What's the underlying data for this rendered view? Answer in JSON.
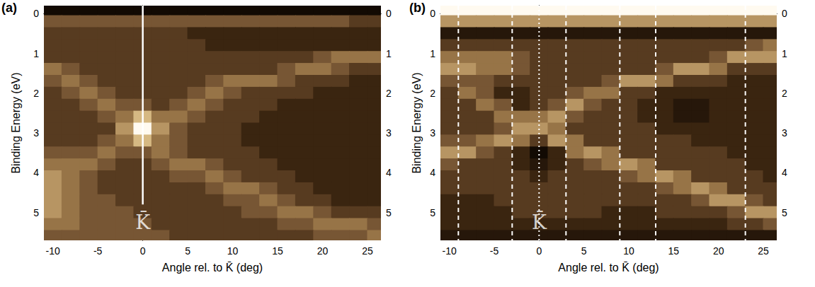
{
  "chart_data": [
    {
      "type": "heatmap",
      "panel": "(a)",
      "x_label": "Angle rel. to K̄ (deg)",
      "y_label": "Binding Energy (eV)",
      "xlim": [
        -11,
        26.5
      ],
      "xticks": [
        -10,
        -5,
        0,
        5,
        10,
        15,
        20,
        25
      ],
      "ylim": [
        -0.2,
        5.7
      ],
      "yticks": [
        0,
        1,
        2,
        3,
        4,
        5
      ],
      "grid": false,
      "zlim": [
        0,
        9
      ],
      "cell_x": [
        -10,
        -8,
        -6,
        -4,
        -2,
        0,
        2,
        4,
        6,
        8,
        10,
        12,
        14,
        16,
        18,
        20,
        22,
        24,
        26
      ],
      "cell_y": [
        -0.1,
        0.2,
        0.5,
        0.8,
        1.1,
        1.4,
        1.7,
        2.0,
        2.3,
        2.6,
        2.9,
        3.2,
        3.5,
        3.8,
        4.1,
        4.4,
        4.7,
        5.0,
        5.3,
        5.6
      ],
      "cells": [
        [
          0,
          0,
          0,
          0,
          0,
          0,
          0,
          0,
          0,
          0,
          0,
          0,
          0,
          0,
          0,
          0,
          0,
          0,
          0
        ],
        [
          4,
          4,
          4,
          4,
          4,
          4,
          4,
          4,
          4,
          4,
          4,
          4,
          4,
          4,
          4,
          4,
          4,
          3,
          3
        ],
        [
          3,
          3,
          3,
          3,
          3,
          3,
          3,
          3,
          2,
          2,
          2,
          2,
          2,
          2,
          2,
          2,
          2,
          2,
          2
        ],
        [
          3,
          3,
          3,
          3,
          3,
          3,
          3,
          3,
          3,
          2,
          2,
          2,
          2,
          2,
          2,
          2,
          2,
          2,
          2
        ],
        [
          3,
          3,
          3,
          3,
          3,
          3,
          3,
          3,
          3,
          3,
          3,
          3,
          3,
          3,
          3,
          4,
          5,
          5,
          5
        ],
        [
          5,
          4,
          3,
          3,
          3,
          3,
          3,
          3,
          3,
          3,
          3,
          3,
          3,
          4,
          5,
          5,
          4,
          3,
          3
        ],
        [
          4,
          5,
          4,
          3,
          3,
          3,
          3,
          3,
          3,
          4,
          5,
          5,
          5,
          4,
          3,
          3,
          3,
          2,
          2
        ],
        [
          3,
          4,
          5,
          4,
          3,
          3,
          3,
          3,
          4,
          5,
          4,
          3,
          3,
          3,
          3,
          2,
          2,
          2,
          2
        ],
        [
          3,
          3,
          4,
          5,
          4,
          4,
          3,
          4,
          5,
          4,
          3,
          3,
          3,
          2,
          2,
          2,
          2,
          2,
          2
        ],
        [
          3,
          3,
          3,
          4,
          5,
          7,
          5,
          5,
          4,
          3,
          3,
          3,
          2,
          2,
          2,
          2,
          2,
          2,
          2
        ],
        [
          3,
          3,
          3,
          3,
          6,
          9,
          6,
          4,
          3,
          3,
          3,
          2,
          2,
          2,
          2,
          2,
          2,
          2,
          2
        ],
        [
          3,
          3,
          3,
          4,
          5,
          7,
          5,
          4,
          3,
          3,
          3,
          2,
          2,
          2,
          2,
          2,
          2,
          2,
          2
        ],
        [
          4,
          4,
          4,
          5,
          4,
          4,
          5,
          4,
          3,
          3,
          3,
          3,
          2,
          2,
          2,
          2,
          2,
          2,
          2
        ],
        [
          5,
          5,
          5,
          4,
          3,
          3,
          4,
          5,
          5,
          4,
          3,
          3,
          3,
          2,
          2,
          2,
          2,
          2,
          2
        ],
        [
          6,
          5,
          4,
          3,
          3,
          3,
          3,
          4,
          4,
          5,
          4,
          3,
          3,
          3,
          2,
          2,
          2,
          2,
          2
        ],
        [
          6,
          5,
          4,
          3,
          3,
          3,
          3,
          3,
          3,
          4,
          5,
          5,
          4,
          3,
          3,
          2,
          2,
          2,
          2
        ],
        [
          6,
          5,
          4,
          4,
          3,
          3,
          3,
          3,
          3,
          3,
          4,
          4,
          5,
          4,
          3,
          3,
          2,
          2,
          2
        ],
        [
          6,
          5,
          4,
          4,
          4,
          3,
          3,
          3,
          3,
          3,
          3,
          4,
          4,
          5,
          5,
          4,
          3,
          3,
          3
        ],
        [
          5,
          5,
          4,
          4,
          4,
          4,
          3,
          3,
          3,
          3,
          3,
          3,
          3,
          4,
          4,
          5,
          5,
          5,
          4
        ],
        [
          4,
          4,
          4,
          4,
          4,
          4,
          4,
          3,
          3,
          3,
          3,
          3,
          3,
          3,
          3,
          4,
          4,
          4,
          5
        ]
      ],
      "marker_line": {
        "x": 0,
        "y": [
          -0.2,
          4.8
        ]
      },
      "annotations": [
        {
          "text": "K̄",
          "x": 0,
          "y": 5.25
        }
      ]
    },
    {
      "type": "heatmap",
      "panel": "(b)",
      "x_label": "Angle rel. to K̄ (deg)",
      "y_label": "Binding Energy (eV)",
      "xlim": [
        -11,
        26.5
      ],
      "xticks": [
        -10,
        -5,
        0,
        5,
        10,
        15,
        20,
        25
      ],
      "ylim": [
        -0.2,
        5.7
      ],
      "yticks": [
        0,
        1,
        2,
        3,
        4,
        5
      ],
      "grid": false,
      "zlim": [
        0,
        9
      ],
      "cell_x": [
        -10,
        -8,
        -6,
        -4,
        -2,
        0,
        2,
        4,
        6,
        8,
        10,
        12,
        14,
        16,
        18,
        20,
        22,
        24,
        26
      ],
      "cell_y": [
        -0.1,
        0.2,
        0.5,
        0.8,
        1.1,
        1.4,
        1.7,
        2.0,
        2.3,
        2.6,
        2.9,
        3.2,
        3.5,
        3.8,
        4.1,
        4.4,
        4.7,
        5.0,
        5.3,
        5.6
      ],
      "cells": [
        [
          9,
          9,
          9,
          9,
          9,
          9,
          9,
          9,
          9,
          9,
          9,
          9,
          9,
          9,
          9,
          9,
          9,
          9,
          9
        ],
        [
          6,
          6,
          6,
          6,
          6,
          6,
          6,
          6,
          6,
          6,
          6,
          6,
          6,
          6,
          6,
          6,
          6,
          6,
          6
        ],
        [
          1,
          1,
          1,
          1,
          1,
          1,
          1,
          1,
          1,
          1,
          1,
          1,
          1,
          1,
          1,
          1,
          1,
          1,
          1
        ],
        [
          3,
          3,
          3,
          3,
          3,
          3,
          3,
          3,
          3,
          3,
          3,
          3,
          3,
          3,
          3,
          3,
          3,
          4,
          5
        ],
        [
          5,
          5,
          5,
          5,
          4,
          3,
          3,
          3,
          3,
          3,
          3,
          3,
          3,
          3,
          3,
          4,
          6,
          6,
          6
        ],
        [
          6,
          6,
          5,
          5,
          4,
          3,
          3,
          3,
          3,
          3,
          3,
          3,
          4,
          6,
          6,
          5,
          3,
          3,
          3
        ],
        [
          4,
          4,
          4,
          3,
          3,
          3,
          3,
          3,
          3,
          4,
          6,
          6,
          5,
          3,
          3,
          3,
          2,
          2,
          2
        ],
        [
          3,
          5,
          4,
          2,
          2,
          3,
          3,
          4,
          5,
          5,
          3,
          3,
          2,
          2,
          2,
          2,
          2,
          2,
          2
        ],
        [
          3,
          3,
          5,
          4,
          2,
          3,
          4,
          6,
          4,
          3,
          3,
          2,
          2,
          1,
          1,
          2,
          2,
          2,
          2
        ],
        [
          3,
          3,
          3,
          5,
          5,
          5,
          6,
          4,
          3,
          3,
          3,
          2,
          2,
          1,
          1,
          2,
          2,
          2,
          2
        ],
        [
          3,
          3,
          3,
          4,
          6,
          6,
          5,
          3,
          3,
          3,
          3,
          3,
          2,
          2,
          2,
          2,
          2,
          2,
          2
        ],
        [
          4,
          4,
          5,
          6,
          5,
          3,
          6,
          5,
          3,
          3,
          3,
          3,
          3,
          3,
          2,
          2,
          2,
          2,
          2
        ],
        [
          6,
          6,
          4,
          3,
          2,
          0,
          2,
          5,
          6,
          5,
          3,
          3,
          3,
          3,
          3,
          3,
          2,
          2,
          2
        ],
        [
          4,
          3,
          3,
          3,
          2,
          1,
          2,
          3,
          4,
          5,
          6,
          5,
          3,
          3,
          3,
          3,
          3,
          2,
          2
        ],
        [
          3,
          3,
          3,
          3,
          3,
          2,
          3,
          3,
          3,
          3,
          4,
          5,
          6,
          5,
          3,
          3,
          3,
          3,
          2
        ],
        [
          3,
          3,
          3,
          3,
          3,
          3,
          3,
          3,
          3,
          3,
          3,
          3,
          4,
          5,
          6,
          5,
          3,
          3,
          3
        ],
        [
          2,
          2,
          2,
          3,
          3,
          3,
          3,
          3,
          3,
          3,
          3,
          3,
          3,
          3,
          4,
          6,
          6,
          4,
          3
        ],
        [
          2,
          2,
          2,
          2,
          3,
          3,
          3,
          3,
          3,
          2,
          2,
          2,
          3,
          3,
          3,
          3,
          4,
          6,
          6
        ],
        [
          2,
          2,
          2,
          2,
          2,
          2,
          2,
          2,
          2,
          2,
          2,
          2,
          2,
          2,
          2,
          2,
          3,
          3,
          4
        ],
        [
          1,
          1,
          1,
          1,
          1,
          1,
          1,
          1,
          1,
          1,
          1,
          1,
          1,
          1,
          1,
          1,
          1,
          1,
          1
        ]
      ],
      "dashed_lines": [
        -9,
        -3,
        3,
        9,
        13,
        23
      ],
      "dotted_lines": [
        0
      ],
      "annotations": [
        {
          "text": "K̄",
          "x": 0,
          "y": 5.25
        }
      ]
    }
  ]
}
